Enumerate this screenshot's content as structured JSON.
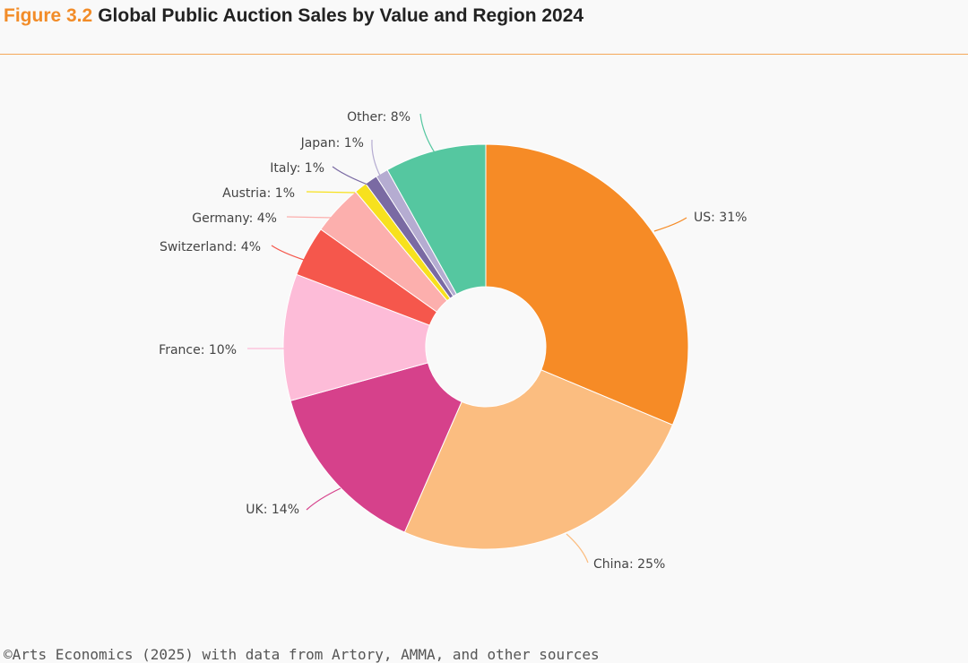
{
  "header": {
    "figure_label": "Figure 3.2",
    "title": "Global Public Auction Sales by Value and Region 2024"
  },
  "footer": {
    "source": "©Arts Economics (2025) with data from Artory, AMMA, and other sources"
  },
  "colors": {
    "accent": "#f28c28",
    "rule": "#f5a85a"
  },
  "chart_data": {
    "type": "pie",
    "donut": true,
    "title": "Global Public Auction Sales by Value and Region 2024",
    "slices": [
      {
        "label": "US: 31%",
        "name": "US",
        "value": 31,
        "color": "#f68b26"
      },
      {
        "label": "China: 25%",
        "name": "China",
        "value": 25,
        "color": "#fbbd80"
      },
      {
        "label": "UK: 14%",
        "name": "UK",
        "value": 14,
        "color": "#d6418b"
      },
      {
        "label": "France: 10%",
        "name": "France",
        "value": 10,
        "color": "#fdbcd8"
      },
      {
        "label": "Switzerland: 4%",
        "name": "Switzerland",
        "value": 4,
        "color": "#f5574c"
      },
      {
        "label": "Germany: 4%",
        "name": "Germany",
        "value": 4,
        "color": "#fcafad"
      },
      {
        "label": "Austria: 1%",
        "name": "Austria",
        "value": 1,
        "color": "#f7e11e"
      },
      {
        "label": "Italy: 1%",
        "name": "Italy",
        "value": 1,
        "color": "#7a6aa3"
      },
      {
        "label": "Japan: 1%",
        "name": "Japan",
        "value": 1,
        "color": "#b5acd1"
      },
      {
        "label": "Other: 8%",
        "name": "Other",
        "value": 8,
        "color": "#55c7a0"
      }
    ],
    "legend": "labels-on-leader-lines"
  }
}
